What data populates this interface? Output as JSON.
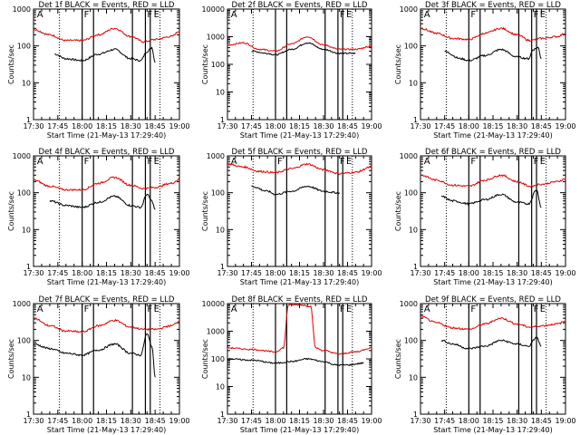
{
  "figure": {
    "x_tick_labels": [
      "17:30",
      "17:45",
      "18:00",
      "18:15",
      "18:30",
      "18:45",
      "19:00"
    ],
    "y_tick_labels": [
      "1",
      "10",
      "100",
      "1000"
    ],
    "y_tick_labels_big": [
      "1",
      "10",
      "100",
      "1000",
      "10000"
    ],
    "colors": {
      "events": "#000000",
      "lld": "#e00000"
    }
  },
  "chart_data": [
    {
      "type": "line",
      "panel": "det1",
      "title": "Det 1f BLACK = Events, RED = LLD",
      "xlabel": "Start Time (21-May-13 17:29:40)",
      "ylabel": "Counts/sec",
      "xlim": [
        "17:30",
        "19:00"
      ],
      "ylim": [
        1,
        1000
      ],
      "yscale": "log",
      "attenuator_lines": [
        "18:00",
        "18:07",
        "18:31",
        "18:39",
        "18:42"
      ],
      "marker_lines": [
        "17:46",
        "18:48"
      ],
      "flags": [
        {
          "label": "A",
          "x": "17:31"
        },
        {
          "label": "F",
          "x": "18:00"
        },
        {
          "label": "F",
          "x": "18:39"
        },
        {
          "label": "E",
          "x": "18:43"
        }
      ],
      "series": [
        {
          "name": "Events",
          "x": [
            "17:43",
            "17:50",
            "18:00",
            "18:10",
            "18:20",
            "18:30",
            "18:36",
            "18:40",
            "18:43",
            "18:45"
          ],
          "y": [
            60,
            45,
            40,
            60,
            80,
            45,
            40,
            70,
            90,
            35
          ]
        },
        {
          "name": "LLD",
          "x": [
            "17:30",
            "17:40",
            "17:50",
            "18:00",
            "18:10",
            "18:20",
            "18:30",
            "18:38",
            "18:45",
            "18:55",
            "19:00"
          ],
          "y": [
            280,
            200,
            140,
            140,
            200,
            300,
            180,
            130,
            150,
            180,
            250
          ]
        }
      ]
    },
    {
      "type": "line",
      "panel": "det2",
      "title": "Det 2f BLACK = Events, RED = LLD",
      "xlabel": "Start Time (21-May-13 17:29:40)",
      "ylabel": "Counts/sec",
      "xlim": [
        "17:30",
        "19:00"
      ],
      "ylim": [
        1,
        10000
      ],
      "yscale": "log",
      "attenuator_lines": [
        "18:00",
        "18:07",
        "18:31",
        "18:39",
        "18:42"
      ],
      "marker_lines": [
        "17:46",
        "18:48"
      ],
      "flags": [
        {
          "label": "A",
          "x": "17:31"
        },
        {
          "label": "F",
          "x": "18:39"
        },
        {
          "label": "E",
          "x": "18:43"
        }
      ],
      "series": [
        {
          "name": "Events",
          "x": [
            "17:45",
            "17:55",
            "18:00",
            "18:10",
            "18:20",
            "18:30",
            "18:40",
            "18:50"
          ],
          "y": [
            300,
            250,
            220,
            350,
            600,
            350,
            250,
            250
          ]
        },
        {
          "name": "LLD",
          "x": [
            "17:30",
            "17:40",
            "17:50",
            "18:00",
            "18:10",
            "18:20",
            "18:30",
            "18:40",
            "18:50",
            "19:00"
          ],
          "y": [
            500,
            600,
            350,
            300,
            550,
            1000,
            500,
            350,
            350,
            450
          ]
        }
      ]
    },
    {
      "type": "line",
      "panel": "det3",
      "title": "Det 3f BLACK = Events, RED = LLD",
      "xlabel": "Start Time (21-May-13 17:29:40)",
      "ylabel": "Counts/sec",
      "xlim": [
        "17:30",
        "19:00"
      ],
      "ylim": [
        1,
        1000
      ],
      "yscale": "log",
      "attenuator_lines": [
        "18:00",
        "18:07",
        "18:31",
        "18:39",
        "18:42"
      ],
      "marker_lines": [
        "17:46",
        "18:48"
      ],
      "flags": [
        {
          "label": "A",
          "x": "17:31"
        },
        {
          "label": "F",
          "x": "18:00"
        },
        {
          "label": "F",
          "x": "18:39"
        },
        {
          "label": "E",
          "x": "18:43"
        }
      ],
      "series": [
        {
          "name": "Events",
          "x": [
            "17:45",
            "17:55",
            "18:00",
            "18:10",
            "18:20",
            "18:30",
            "18:37",
            "18:40",
            "18:43",
            "18:45"
          ],
          "y": [
            70,
            45,
            40,
            55,
            80,
            50,
            45,
            80,
            90,
            45
          ]
        },
        {
          "name": "LLD",
          "x": [
            "17:30",
            "17:40",
            "17:50",
            "18:00",
            "18:10",
            "18:20",
            "18:30",
            "18:38",
            "18:45",
            "18:55",
            "19:00"
          ],
          "y": [
            300,
            220,
            160,
            150,
            220,
            300,
            200,
            140,
            160,
            180,
            220
          ]
        }
      ]
    },
    {
      "type": "line",
      "panel": "det4",
      "title": "Det 4f BLACK = Events, RED = LLD",
      "xlabel": "Start Time (21-May-13 17:29:40)",
      "ylabel": "Counts/sec",
      "xlim": [
        "17:30",
        "19:00"
      ],
      "ylim": [
        1,
        1000
      ],
      "yscale": "log",
      "attenuator_lines": [
        "18:00",
        "18:07",
        "18:31",
        "18:39",
        "18:42"
      ],
      "marker_lines": [
        "17:46",
        "18:48"
      ],
      "flags": [
        {
          "label": "A",
          "x": "17:31"
        },
        {
          "label": "F",
          "x": "18:00"
        },
        {
          "label": "F",
          "x": "18:39"
        },
        {
          "label": "E",
          "x": "18:43"
        }
      ],
      "series": [
        {
          "name": "Events",
          "x": [
            "17:40",
            "17:50",
            "18:00",
            "18:10",
            "18:20",
            "18:30",
            "18:36",
            "18:40",
            "18:43",
            "18:45"
          ],
          "y": [
            60,
            45,
            40,
            55,
            80,
            45,
            40,
            90,
            60,
            35
          ]
        },
        {
          "name": "LLD",
          "x": [
            "17:30",
            "17:40",
            "17:50",
            "18:00",
            "18:10",
            "18:20",
            "18:30",
            "18:38",
            "18:45",
            "18:55",
            "19:00"
          ],
          "y": [
            220,
            150,
            120,
            120,
            180,
            260,
            160,
            130,
            140,
            180,
            230
          ]
        }
      ]
    },
    {
      "type": "line",
      "panel": "det5",
      "title": "Det 5f BLACK = Events, RED = LLD",
      "xlabel": "Start Time (21-May-13 17:29:40)",
      "ylabel": "Counts/sec",
      "xlim": [
        "17:30",
        "19:00"
      ],
      "ylim": [
        1,
        1000
      ],
      "yscale": "log",
      "attenuator_lines": [
        "18:00",
        "18:07",
        "18:31",
        "18:39",
        "18:42"
      ],
      "marker_lines": [
        "17:46",
        "18:48"
      ],
      "flags": [
        {
          "label": "A",
          "x": "17:31"
        },
        {
          "label": "F",
          "x": "18:00"
        },
        {
          "label": "F",
          "x": "18:39"
        },
        {
          "label": "E",
          "x": "18:43"
        }
      ],
      "series": [
        {
          "name": "Events",
          "x": [
            "17:45",
            "17:55",
            "18:00",
            "18:10",
            "18:20",
            "18:30",
            "18:38",
            "18:40"
          ],
          "y": [
            150,
            110,
            90,
            110,
            150,
            110,
            100,
            100
          ]
        },
        {
          "name": "LLD",
          "x": [
            "17:30",
            "17:40",
            "17:50",
            "18:00",
            "18:10",
            "18:20",
            "18:30",
            "18:40",
            "18:50",
            "19:00"
          ],
          "y": [
            600,
            500,
            380,
            350,
            450,
            600,
            420,
            330,
            360,
            500
          ]
        }
      ]
    },
    {
      "type": "line",
      "panel": "det6",
      "title": "Det 6f BLACK = Events, RED = LLD",
      "xlabel": "Start Time (21-May-13 17:29:40)",
      "ylabel": "Counts/sec",
      "xlim": [
        "17:30",
        "19:00"
      ],
      "ylim": [
        1,
        1000
      ],
      "yscale": "log",
      "attenuator_lines": [
        "18:00",
        "18:07",
        "18:31",
        "18:39",
        "18:42"
      ],
      "marker_lines": [
        "17:46",
        "18:48"
      ],
      "flags": [
        {
          "label": "A",
          "x": "17:31"
        },
        {
          "label": "F",
          "x": "18:00"
        },
        {
          "label": "F",
          "x": "18:39"
        },
        {
          "label": "E",
          "x": "18:43"
        }
      ],
      "series": [
        {
          "name": "Events",
          "x": [
            "17:43",
            "17:50",
            "18:00",
            "18:10",
            "18:20",
            "18:30",
            "18:37",
            "18:42",
            "18:45"
          ],
          "y": [
            80,
            60,
            50,
            65,
            90,
            55,
            50,
            120,
            40
          ]
        },
        {
          "name": "LLD",
          "x": [
            "17:30",
            "17:40",
            "17:50",
            "18:00",
            "18:10",
            "18:20",
            "18:30",
            "18:38",
            "18:45",
            "18:55",
            "19:00"
          ],
          "y": [
            300,
            220,
            160,
            150,
            220,
            300,
            200,
            150,
            170,
            200,
            240
          ]
        }
      ]
    },
    {
      "type": "line",
      "panel": "det7",
      "title": "Det 7f BLACK = Events, RED = LLD",
      "xlabel": "Start Time (21-May-13 17:29:40)",
      "ylabel": "Counts/sec",
      "xlim": [
        "17:30",
        "19:00"
      ],
      "ylim": [
        1,
        1000
      ],
      "yscale": "log",
      "attenuator_lines": [
        "18:00",
        "18:07",
        "18:31",
        "18:39",
        "18:42"
      ],
      "marker_lines": [
        "17:46",
        "18:48"
      ],
      "flags": [
        {
          "label": "A",
          "x": "17:31"
        },
        {
          "label": "F",
          "x": "18:00"
        },
        {
          "label": "F",
          "x": "18:39"
        },
        {
          "label": "E",
          "x": "18:43"
        }
      ],
      "series": [
        {
          "name": "Events",
          "x": [
            "17:30",
            "17:40",
            "17:50",
            "18:00",
            "18:10",
            "18:20",
            "18:30",
            "18:36",
            "18:40",
            "18:43",
            "18:45"
          ],
          "y": [
            80,
            60,
            45,
            40,
            55,
            80,
            45,
            40,
            150,
            70,
            10
          ]
        },
        {
          "name": "LLD",
          "x": [
            "17:30",
            "17:40",
            "17:50",
            "18:00",
            "18:10",
            "18:20",
            "18:30",
            "18:38",
            "18:45",
            "18:55",
            "19:00"
          ],
          "y": [
            400,
            250,
            180,
            170,
            250,
            350,
            230,
            200,
            200,
            250,
            330
          ]
        }
      ]
    },
    {
      "type": "line",
      "panel": "det8",
      "title": "Det 8f BLACK = Events, RED = LLD",
      "xlabel": "Start Time (21-May-13 17:29:40)",
      "ylabel": "Counts/sec",
      "xlim": [
        "17:30",
        "19:00"
      ],
      "ylim": [
        1,
        10000
      ],
      "yscale": "log",
      "attenuator_lines": [
        "18:00",
        "18:07",
        "18:31",
        "18:39",
        "18:42"
      ],
      "marker_lines": [
        "17:46",
        "18:48"
      ],
      "flags": [
        {
          "label": "A",
          "x": "17:31"
        },
        {
          "label": "F",
          "x": "18:39"
        },
        {
          "label": "E",
          "x": "18:43"
        }
      ],
      "series": [
        {
          "name": "Events",
          "x": [
            "17:30",
            "17:45",
            "18:00",
            "18:10",
            "18:20",
            "18:30",
            "18:38",
            "18:45",
            "18:55"
          ],
          "y": [
            100,
            90,
            70,
            80,
            100,
            80,
            60,
            60,
            70
          ]
        },
        {
          "name": "LLD",
          "x": [
            "17:30",
            "17:45",
            "18:00",
            "18:05",
            "18:08",
            "18:15",
            "18:22",
            "18:25",
            "18:30",
            "18:40",
            "18:50",
            "19:00"
          ],
          "y": [
            250,
            220,
            180,
            250,
            9000,
            9000,
            8000,
            250,
            200,
            150,
            180,
            250
          ]
        }
      ]
    },
    {
      "type": "line",
      "panel": "det9",
      "title": "Det 9f BLACK = Events, RED = LLD",
      "xlabel": "Start Time (21-May-13 17:29:40)",
      "ylabel": "Counts/sec",
      "xlim": [
        "17:30",
        "19:00"
      ],
      "ylim": [
        1,
        1000
      ],
      "yscale": "log",
      "attenuator_lines": [
        "18:00",
        "18:07",
        "18:31",
        "18:39",
        "18:42"
      ],
      "marker_lines": [
        "17:46",
        "18:48"
      ],
      "flags": [
        {
          "label": "A",
          "x": "17:31"
        },
        {
          "label": "F",
          "x": "18:00"
        },
        {
          "label": "F",
          "x": "18:39"
        },
        {
          "label": "E",
          "x": "18:43"
        }
      ],
      "series": [
        {
          "name": "Events",
          "x": [
            "17:43",
            "17:50",
            "18:00",
            "18:10",
            "18:20",
            "18:30",
            "18:37",
            "18:42",
            "18:45"
          ],
          "y": [
            100,
            80,
            60,
            70,
            100,
            80,
            70,
            120,
            70
          ]
        },
        {
          "name": "LLD",
          "x": [
            "17:30",
            "17:40",
            "17:50",
            "18:00",
            "18:10",
            "18:20",
            "18:30",
            "18:38",
            "18:45",
            "18:55",
            "19:00"
          ],
          "y": [
            450,
            300,
            220,
            200,
            280,
            400,
            280,
            230,
            250,
            280,
            330
          ]
        }
      ]
    }
  ]
}
